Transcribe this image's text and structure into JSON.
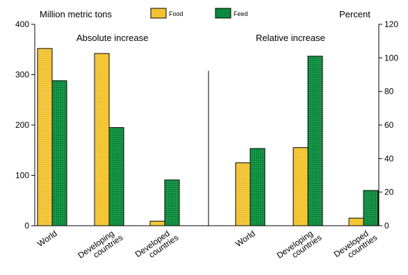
{
  "chart_data": {
    "type": "bar",
    "left_axis_label": "Million metric tons",
    "right_axis_label": "Percent",
    "legend": [
      {
        "name": "Food",
        "color": "#f2c331"
      },
      {
        "name": "Feed",
        "color": "#0c8a3c"
      }
    ],
    "panels": [
      {
        "title": "Absolute increase",
        "axis": "left",
        "ylim": [
          0,
          400
        ],
        "yticks": [
          "0",
          "100",
          "200",
          "300",
          "400"
        ],
        "categories": [
          [
            "World"
          ],
          [
            "Developing",
            "countries"
          ],
          [
            "Developed",
            "countries"
          ]
        ],
        "series": [
          {
            "name": "Food",
            "values": [
              352,
              342,
              9
            ]
          },
          {
            "name": "Feed",
            "values": [
              288,
              195,
              91
            ]
          }
        ]
      },
      {
        "title": "Relative increase",
        "axis": "right",
        "ylim": [
          0,
          120
        ],
        "yticks": [
          "0",
          "20",
          "40",
          "60",
          "80",
          "100",
          "120"
        ],
        "categories": [
          [
            "World"
          ],
          [
            "Developing",
            "countries"
          ],
          [
            "Developed",
            "countries"
          ]
        ],
        "series": [
          {
            "name": "Food",
            "values": [
              37.5,
              46.5,
              4.5
            ]
          },
          {
            "name": "Feed",
            "values": [
              46,
              101,
              21
            ]
          }
        ]
      }
    ]
  }
}
